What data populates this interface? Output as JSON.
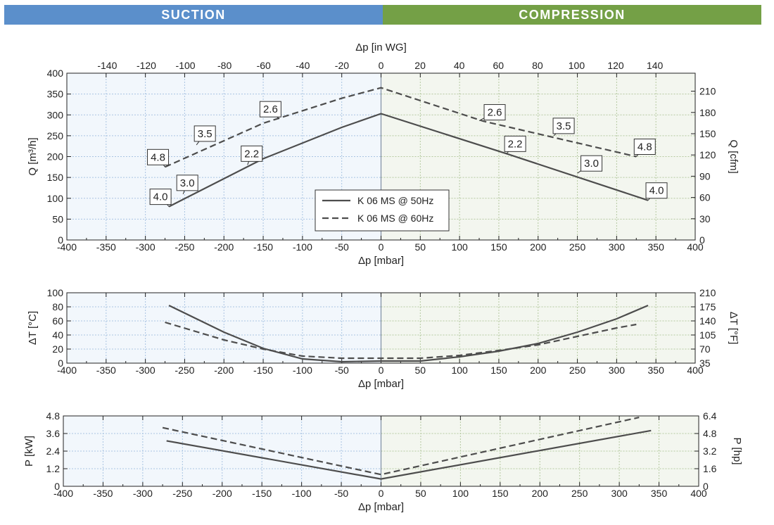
{
  "header": {
    "suction": "SUCTION",
    "compression": "COMPRESSION",
    "suction_color": "#5b8fcb",
    "compression_color": "#74a046"
  },
  "chart_data": [
    {
      "type": "line",
      "id": "flow",
      "xlabel": "Δp [mbar]",
      "xlim": [
        -400,
        400
      ],
      "xticks": [
        -400,
        -350,
        -300,
        -250,
        -200,
        -150,
        -100,
        -50,
        0,
        50,
        100,
        150,
        200,
        250,
        300,
        350,
        400
      ],
      "x2label": "Δp [in WG]",
      "x2ticks": [
        -140,
        -120,
        -100,
        -80,
        -60,
        -40,
        -20,
        0,
        20,
        40,
        60,
        80,
        100,
        120,
        140
      ],
      "x2_mbar_per_unit": 2.49,
      "ylabel": "Q [m³/h]",
      "ylim": [
        0,
        400
      ],
      "yticks": [
        0,
        50,
        100,
        150,
        200,
        250,
        300,
        350,
        400
      ],
      "y2label": "Q [cfm]",
      "y2ticks": [
        0,
        30,
        60,
        90,
        120,
        150,
        180,
        210
      ],
      "y2_per_unit": 0.5886,
      "series": [
        {
          "name": "K 06 MS @ 50Hz",
          "dash": "solid",
          "x": [
            -270,
            -150,
            -50,
            0,
            160,
            340
          ],
          "y": [
            80,
            195,
            270,
            303,
            207,
            95
          ]
        },
        {
          "name": "K 06 MS @ 60Hz",
          "dash": "dashed",
          "x": [
            -275,
            -150,
            -50,
            0,
            130,
            325
          ],
          "y": [
            175,
            280,
            340,
            365,
            285,
            200
          ]
        }
      ],
      "annotations": [
        {
          "text": "4.0",
          "x": -270,
          "y": 80,
          "dx": -12,
          "dy": -14
        },
        {
          "text": "3.0",
          "x": -252,
          "y": 110,
          "dx": 6,
          "dy": -16
        },
        {
          "text": "2.2",
          "x": -170,
          "y": 180,
          "dx": 6,
          "dy": -16
        },
        {
          "text": "4.8",
          "x": -275,
          "y": 175,
          "dx": -10,
          "dy": -14
        },
        {
          "text": "3.5",
          "x": -235,
          "y": 228,
          "dx": 12,
          "dy": -16
        },
        {
          "text": "2.6",
          "x": -130,
          "y": 290,
          "dx": -12,
          "dy": -14
        },
        {
          "text": "2.6",
          "x": 125,
          "y": 286,
          "dx": 22,
          "dy": -12
        },
        {
          "text": "2.2",
          "x": 160,
          "y": 207,
          "dx": 12,
          "dy": -14
        },
        {
          "text": "3.5",
          "x": 220,
          "y": 250,
          "dx": 14,
          "dy": -14
        },
        {
          "text": "3.0",
          "x": 250,
          "y": 160,
          "dx": 20,
          "dy": -14
        },
        {
          "text": "4.8",
          "x": 325,
          "y": 200,
          "dx": 12,
          "dy": -14
        },
        {
          "text": "4.0",
          "x": 340,
          "y": 95,
          "dx": 12,
          "dy": -14
        }
      ],
      "legend": [
        "K 06 MS @ 50Hz",
        "K 06 MS @ 60Hz"
      ],
      "legend_position": "center-bottom"
    },
    {
      "type": "line",
      "id": "temp",
      "xlabel": "Δp [mbar]",
      "xlim": [
        -400,
        400
      ],
      "xticks": [
        -400,
        -350,
        -300,
        -250,
        -200,
        -150,
        -100,
        -50,
        0,
        50,
        100,
        150,
        200,
        250,
        300,
        350,
        400
      ],
      "ylabel": "ΔT [°C]",
      "ylim": [
        0,
        100
      ],
      "yticks": [
        0,
        20,
        40,
        60,
        80,
        100
      ],
      "y2label": "ΔT [°F]",
      "y2ticks": [
        35,
        70,
        105,
        140,
        175,
        210
      ],
      "series": [
        {
          "name": "K 06 MS @ 50Hz",
          "dash": "solid",
          "x": [
            -270,
            -200,
            -150,
            -100,
            -50,
            0,
            50,
            100,
            150,
            200,
            250,
            300,
            340
          ],
          "y": [
            82,
            44,
            21,
            6,
            2,
            3,
            3,
            9,
            17,
            28,
            44,
            63,
            82
          ]
        },
        {
          "name": "K 06 MS @ 60Hz",
          "dash": "dashed",
          "x": [
            -275,
            -200,
            -150,
            -100,
            -50,
            0,
            50,
            100,
            150,
            200,
            250,
            300,
            325
          ],
          "y": [
            58,
            33,
            20,
            10,
            7,
            7,
            7,
            11,
            18,
            26,
            38,
            50,
            55
          ]
        }
      ]
    },
    {
      "type": "line",
      "id": "power",
      "xlabel": "Δp [mbar]",
      "xlim": [
        -400,
        400
      ],
      "xticks": [
        -400,
        -350,
        -300,
        -250,
        -200,
        -150,
        -100,
        -50,
        0,
        50,
        100,
        150,
        200,
        250,
        300,
        350,
        400
      ],
      "ylabel": "P [kW]",
      "ylim": [
        0,
        4.8
      ],
      "yticks": [
        "0",
        "1.2",
        "2.4",
        "3.6",
        "4.8"
      ],
      "y2label": "P [hp]",
      "y2ticks": [
        "0",
        "1.6",
        "3.2",
        "4.8",
        "6.4"
      ],
      "series": [
        {
          "name": "K 06 MS @ 50Hz",
          "dash": "solid",
          "x": [
            -270,
            0,
            340
          ],
          "y": [
            3.1,
            0.5,
            3.8
          ]
        },
        {
          "name": "K 06 MS @ 60Hz",
          "dash": "dashed",
          "x": [
            -275,
            0,
            325
          ],
          "y": [
            4.0,
            0.8,
            4.7
          ]
        }
      ]
    }
  ]
}
